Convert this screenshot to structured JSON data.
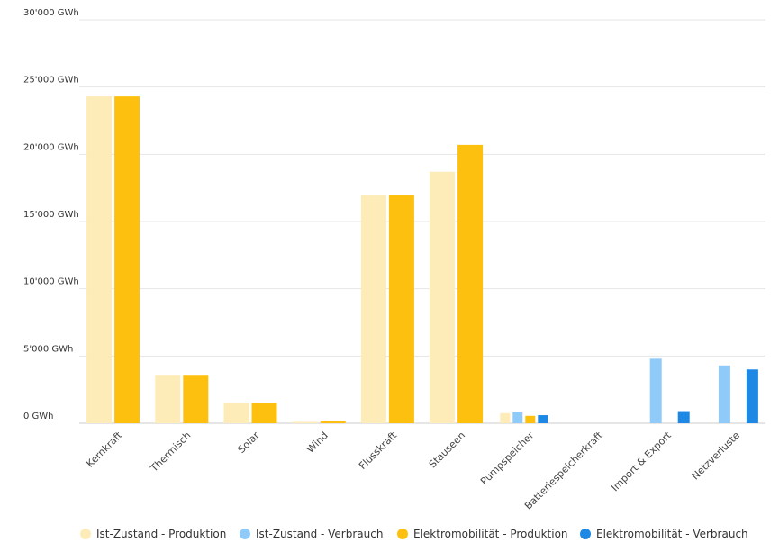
{
  "chart_data": {
    "type": "bar",
    "categories": [
      "Kernkraft",
      "Thermisch",
      "Solar",
      "Wind",
      "Flusskraft",
      "Stauseen",
      "Pumpspeicher",
      "Batteriespeicherkraft",
      "Import & Export",
      "Netzverluste"
    ],
    "series": [
      {
        "name": "Ist-Zustand - Produktion",
        "color": "#fdebb8",
        "values": [
          24300,
          3600,
          1500,
          100,
          17000,
          18700,
          750,
          0,
          0,
          0
        ]
      },
      {
        "name": "Ist-Zustand - Verbrauch",
        "color": "#90caf9",
        "values": [
          0,
          0,
          0,
          0,
          0,
          0,
          850,
          0,
          4800,
          4300
        ]
      },
      {
        "name": "Elektromobilität - Produktion",
        "color": "#fdc00e",
        "values": [
          24300,
          3600,
          1500,
          150,
          17000,
          20700,
          550,
          0,
          0,
          0
        ]
      },
      {
        "name": "Elektromobilität - Verbrauch",
        "color": "#1e88e5",
        "values": [
          0,
          0,
          0,
          0,
          0,
          0,
          600,
          0,
          900,
          4000
        ]
      }
    ],
    "yticks": [
      {
        "value": 0,
        "label": "0 GWh"
      },
      {
        "value": 5000,
        "label": "5'000 GWh"
      },
      {
        "value": 10000,
        "label": "10'000 GWh"
      },
      {
        "value": 15000,
        "label": "15'000 GWh"
      },
      {
        "value": 20000,
        "label": "20'000 GWh"
      },
      {
        "value": 25000,
        "label": "25'000 GWh"
      },
      {
        "value": 30000,
        "label": "30'000 GWh"
      }
    ],
    "ylim": [
      0,
      30000
    ],
    "grid": true,
    "legend_position": "bottom"
  }
}
